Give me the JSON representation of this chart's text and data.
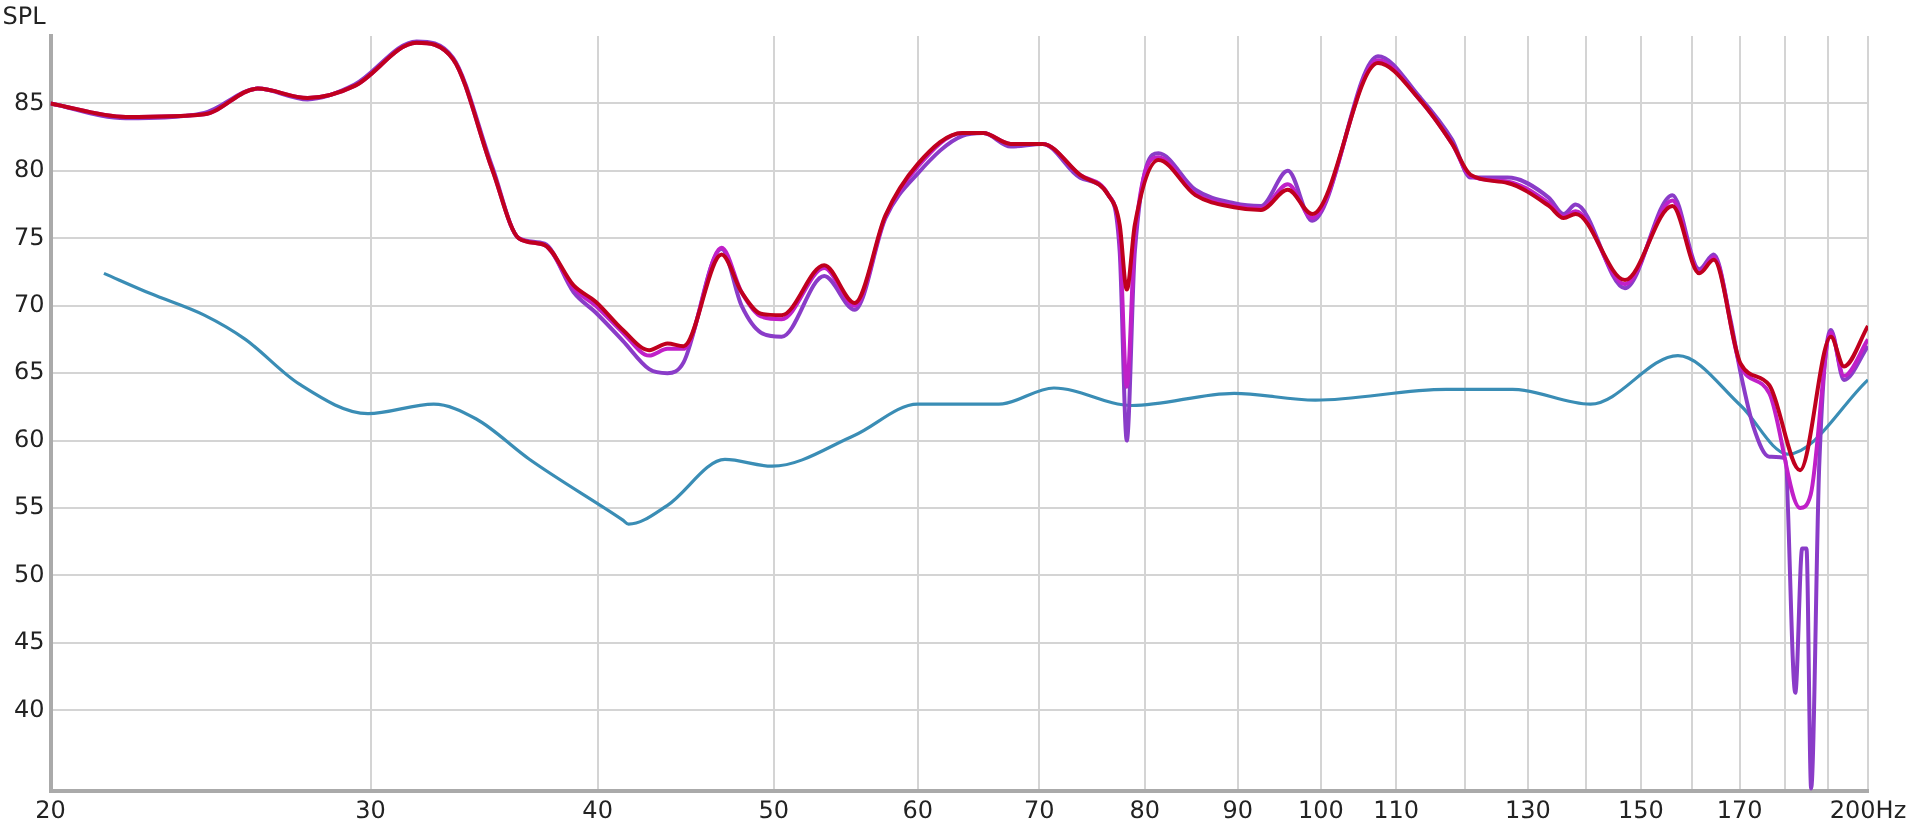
{
  "chart_data": {
    "type": "line",
    "ylabel": "SPL",
    "xlim": [
      20,
      200
    ],
    "ylim": [
      34,
      90
    ],
    "log": "x",
    "grid": true,
    "legend": false,
    "marker": "none",
    "line_style": "solid",
    "xticks": [
      20,
      30,
      40,
      50,
      60,
      70,
      80,
      90,
      100,
      110,
      {
        "value": 120,
        "label": null
      },
      130,
      {
        "value": 140,
        "label": null
      },
      150,
      {
        "value": 160,
        "label": null
      },
      170,
      {
        "value": 180,
        "label": null
      },
      {
        "value": 190,
        "label": null
      },
      {
        "value": 200,
        "label": "200Hz"
      }
    ],
    "yticks": [
      40,
      45,
      50,
      55,
      60,
      65,
      70,
      75,
      80,
      85
    ],
    "series": [
      {
        "color": "#c0001e",
        "x": [
          20,
          22,
          24.3,
          26,
          27.7,
          29.4,
          31.8,
          33.3,
          35,
          36.2,
          37.4,
          38.8,
          39.9,
          41.3,
          42.7,
          43.7,
          44.6,
          46.8,
          48,
          49.2,
          50.5,
          53.3,
          55.4,
          57.6,
          60,
          63.5,
          65.2,
          67.5,
          70.3,
          73.7,
          76.4,
          77.5,
          78.2,
          79,
          81.4,
          85.3,
          89.6,
          92.7,
          95.9,
          98.9,
          107.5,
          113.3,
          118.1,
          120.9,
          126.7,
          133.5,
          136,
          138.1,
          147,
          156.1,
          161.5,
          164.5,
          170.2,
          176.5,
          183.5,
          190.8,
          194,
          200
        ],
        "values": [
          85,
          84,
          84.2,
          86.1,
          85.4,
          86.3,
          89.5,
          88.3,
          80.1,
          75,
          74.5,
          71.5,
          70.3,
          68.2,
          66.7,
          67.2,
          67,
          73.8,
          71,
          69.4,
          69.3,
          73,
          70.2,
          76.7,
          80.5,
          82.8,
          82.8,
          82,
          82,
          79.7,
          78.2,
          76,
          71.2,
          76,
          80.8,
          78.2,
          77.3,
          77.1,
          78.6,
          76.8,
          88,
          85.3,
          82,
          79.7,
          79.1,
          77.4,
          76.5,
          76.8,
          71.9,
          77.4,
          72.4,
          73.4,
          65.7,
          64.1,
          57.8,
          67.7,
          65.5,
          68.5
        ]
      },
      {
        "color": "#c020c8",
        "x": [
          20,
          22,
          24.3,
          26,
          27.7,
          29.4,
          31.8,
          33.3,
          35,
          36.2,
          37.4,
          38.8,
          39.9,
          41.3,
          42.7,
          43.7,
          44.6,
          46.8,
          48,
          49.2,
          50.5,
          53.3,
          55.4,
          57.6,
          60,
          63.5,
          65.2,
          67.5,
          70.3,
          73.7,
          76.4,
          77.5,
          78.2,
          79,
          81.4,
          85.3,
          89.6,
          92.7,
          95.9,
          98.9,
          107.5,
          113.3,
          118.1,
          120.9,
          126.7,
          133.5,
          136,
          138.1,
          147,
          156.1,
          161.5,
          164.5,
          170.2,
          176.5,
          183.5,
          186,
          190.8,
          194,
          200
        ],
        "values": [
          85,
          84,
          84.2,
          86.1,
          85.4,
          86.3,
          89.5,
          88.3,
          80.1,
          75,
          74.5,
          71.3,
          70,
          68,
          66.3,
          66.8,
          66.8,
          74.3,
          71,
          69.2,
          69,
          72.8,
          70,
          76.6,
          80.3,
          82.8,
          82.8,
          82,
          82,
          79.7,
          78.2,
          75,
          64,
          75,
          81,
          78.3,
          77.4,
          77.2,
          79,
          76.5,
          88.2,
          85.3,
          82,
          79.6,
          79.2,
          77.6,
          76.6,
          77,
          71.6,
          77.8,
          72.5,
          73.6,
          65.5,
          63.5,
          55,
          56,
          68,
          64.8,
          67.5
        ]
      },
      {
        "color": "#8a3cc8",
        "x": [
          20,
          22,
          24.3,
          26,
          27.7,
          29.4,
          31.8,
          33.3,
          35,
          36.2,
          37.4,
          38.8,
          39.9,
          41.3,
          42.7,
          43.7,
          44.6,
          46.8,
          48,
          49.2,
          50.5,
          53.3,
          55.4,
          57.6,
          60,
          63.5,
          65.2,
          67.5,
          70.3,
          73.7,
          76.4,
          77.5,
          78.2,
          79,
          81.4,
          85.3,
          89.6,
          92.7,
          95.9,
          98.9,
          107.5,
          113.3,
          118.1,
          120.9,
          126.7,
          133.5,
          136,
          138.1,
          147,
          156.1,
          161.5,
          164.5,
          168,
          170.2,
          173,
          176.5,
          180,
          182.4,
          184,
          185,
          186.1,
          188,
          190.8,
          194,
          200
        ],
        "values": [
          85,
          83.9,
          84.3,
          86.1,
          85.3,
          86.4,
          89.6,
          88.4,
          80.3,
          75,
          74.6,
          71,
          69.5,
          67.4,
          65.3,
          65,
          65.8,
          74.2,
          70,
          68,
          67.7,
          72.2,
          69.7,
          76.5,
          79.8,
          82.6,
          82.8,
          81.8,
          82,
          79.5,
          78.2,
          74,
          60,
          74,
          81.3,
          78.6,
          77.6,
          77.4,
          80,
          76.3,
          88.5,
          85.5,
          82.3,
          79.5,
          79.5,
          78,
          76.8,
          77.5,
          71.3,
          78.2,
          72.7,
          73.8,
          69,
          65,
          61,
          58.8,
          58.7,
          41.3,
          52,
          52,
          34.2,
          58,
          68.2,
          64.5,
          67
        ]
      },
      {
        "color": "#3a8db5",
        "x": [
          21.4,
          22.7,
          24.3,
          25.6,
          27.4,
          29.9,
          32.5,
          34.3,
          36.7,
          41.3,
          41.6,
          43.7,
          47,
          49.9,
          55.4,
          60,
          66.5,
          71.3,
          78.7,
          89.6,
          99.3,
          117.2,
          127.5,
          140.7,
          157.2,
          170.2,
          180.7,
          200
        ],
        "values": [
          72.4,
          70.9,
          69.3,
          67.5,
          64.2,
          62,
          62.7,
          61.6,
          58.6,
          54.1,
          53.8,
          55.2,
          58.6,
          58.1,
          60.4,
          62.7,
          62.7,
          63.9,
          62.6,
          63.5,
          63,
          63.8,
          63.8,
          62.7,
          66.3,
          62.6,
          59,
          64.5
        ]
      }
    ]
  }
}
